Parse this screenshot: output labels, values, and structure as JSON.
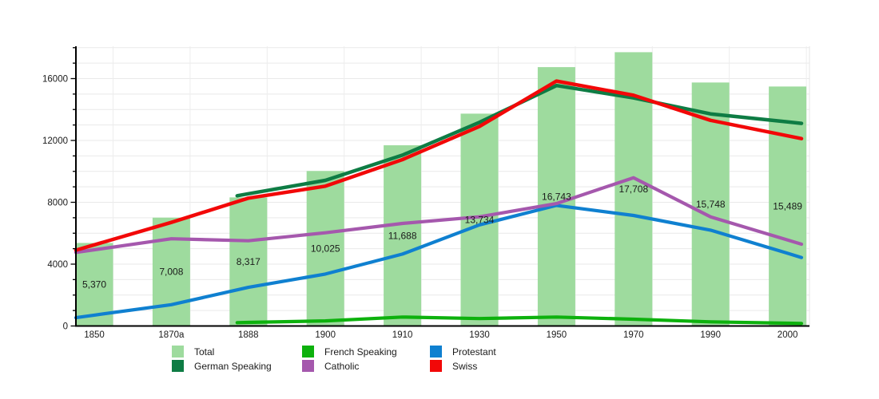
{
  "chart_data": {
    "type": "bar+line",
    "title": "",
    "xlabel": "",
    "ylabel": "",
    "categories": [
      "1850",
      "1870a",
      "1888",
      "1900",
      "1910",
      "1930",
      "1950",
      "1970",
      "1990",
      "2000"
    ],
    "y_axis": {
      "tick_labels": [
        "0",
        "4000",
        "8000",
        "12000",
        "16000"
      ],
      "tick_values": [
        0,
        4000,
        8000,
        12000,
        16000
      ],
      "minor_step": 1000,
      "ylim": [
        0,
        18100
      ],
      "grid": "horizontal, light gray, every 1000"
    },
    "bar_series": {
      "name": "Total",
      "color": "#9edb9e",
      "values": [
        5370,
        7008,
        8317,
        10025,
        11688,
        13734,
        16743,
        17708,
        15748,
        15489
      ],
      "labels": [
        "5,370",
        "7,008",
        "8,317",
        "10,025",
        "11,688",
        "13,734",
        "16,743",
        "17,708",
        "15,748",
        "15,489"
      ],
      "label_position": "centered inside bar at half height"
    },
    "line_series": [
      {
        "name": "Protestant",
        "color": "#0f80d0",
        "width": 4.2,
        "values": [
          700,
          1380,
          2500,
          3360,
          4650,
          6540,
          7800,
          7150,
          6200,
          4700
        ]
      },
      {
        "name": "Catholic",
        "color": "#a558ad",
        "width": 4.2,
        "values": [
          4930,
          5640,
          5510,
          6030,
          6630,
          7060,
          7920,
          9590,
          7060,
          5560
        ]
      },
      {
        "name": "German Speaking",
        "color": "#0e7c44",
        "width": 4.5,
        "values": [
          null,
          null,
          8550,
          9420,
          11050,
          13170,
          15550,
          14750,
          13720,
          13200
        ]
      },
      {
        "name": "Swiss",
        "color": "#f20808",
        "width": 4.5,
        "values": [
          5250,
          6700,
          8270,
          9040,
          10760,
          12910,
          15840,
          14920,
          13300,
          12300
        ]
      },
      {
        "name": "French Speaking",
        "color": "#0db10d",
        "width": 4.2,
        "values": [
          null,
          null,
          230,
          330,
          580,
          480,
          580,
          440,
          270,
          180
        ]
      }
    ],
    "legend": {
      "position": "bottom, 3 columns x 2 rows",
      "items": [
        {
          "label": "Total",
          "color": "#9edb9e"
        },
        {
          "label": "French Speaking",
          "color": "#0db10d"
        },
        {
          "label": "Protestant",
          "color": "#0f80d0"
        },
        {
          "label": "German Speaking",
          "color": "#0e7c44"
        },
        {
          "label": "Catholic",
          "color": "#a558ad"
        },
        {
          "label": "Swiss",
          "color": "#f20808"
        }
      ]
    }
  }
}
